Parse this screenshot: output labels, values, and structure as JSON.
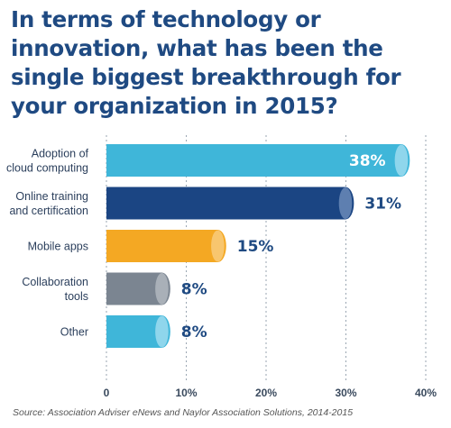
{
  "chart_data": {
    "type": "bar",
    "orientation": "horizontal",
    "title": "In terms of technology or innovation, what has been the single biggest breakthrough for your organization in 2015?",
    "categories": [
      [
        "Adoption of",
        "cloud computing"
      ],
      [
        "Online training",
        "and certification"
      ],
      [
        "Mobile apps"
      ],
      [
        "Collaboration",
        "tools"
      ],
      [
        "Other"
      ]
    ],
    "values": [
      38,
      31,
      15,
      8,
      8
    ],
    "value_labels": [
      "38%",
      "31%",
      "15%",
      "8%",
      "8%"
    ],
    "value_label_colors": [
      "#ffffff",
      "#1f4a82",
      "#1f4a82",
      "#1f4a82",
      "#1f4a82"
    ],
    "bar_colors": [
      "#3fb6d9",
      "#1b4583",
      "#f4a823",
      "#7b8591",
      "#3fb6d9"
    ],
    "bar_cap_colors": [
      "#8fd6ec",
      "#5e7fb0",
      "#f8c66e",
      "#a9b0b8",
      "#8fd6ec"
    ],
    "xlim": [
      0,
      40
    ],
    "xticks": [
      0,
      10,
      20,
      30,
      40
    ],
    "xtick_labels": [
      "0",
      "10%",
      "20%",
      "30%",
      "40%"
    ],
    "grid": "vertical",
    "legend": "none",
    "xlabel": "",
    "ylabel": "",
    "source": "Source: Association Adviser eNews and Naylor Association Solutions, 2014-2015"
  }
}
